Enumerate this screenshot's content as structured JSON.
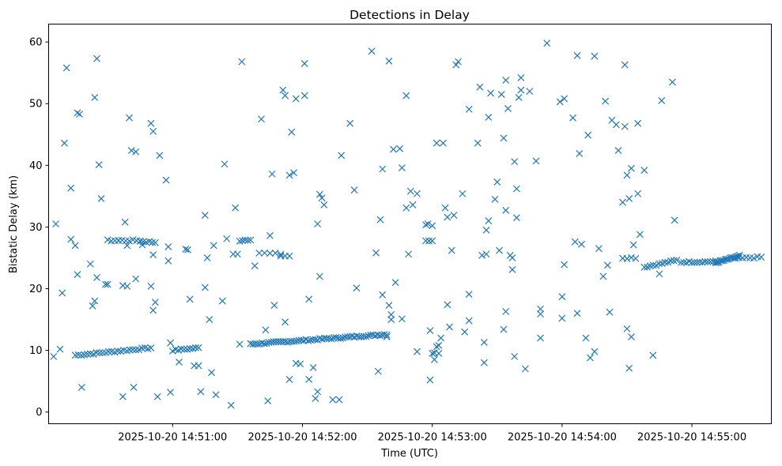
{
  "chart_data": {
    "type": "scatter",
    "title": "Detections in Delay",
    "xlabel": "Time (UTC)",
    "ylabel": "Bistatic Delay (km)",
    "marker": "x",
    "color": "#1f77b4",
    "xlim_seconds": [
      -57.3,
      276.7
    ],
    "ylim": [
      -1.9,
      62.9
    ],
    "x_ticks": [
      {
        "t": 0,
        "label": "2025-10-20 14:51:00"
      },
      {
        "t": 60,
        "label": "2025-10-20 14:52:00"
      },
      {
        "t": 120,
        "label": "2025-10-20 14:53:00"
      },
      {
        "t": 180,
        "label": "2025-10-20 14:54:00"
      },
      {
        "t": 240,
        "label": "2025-10-20 14:55:00"
      }
    ],
    "y_ticks": [
      {
        "v": 0,
        "label": "0"
      },
      {
        "v": 10,
        "label": "10"
      },
      {
        "v": 20,
        "label": "20"
      },
      {
        "v": 30,
        "label": "30"
      },
      {
        "v": 40,
        "label": "40"
      },
      {
        "v": 50,
        "label": "50"
      },
      {
        "v": 60,
        "label": "60"
      }
    ],
    "x_unit_note": "x values are seconds relative to 2025-10-20 14:51:00 UTC",
    "clusters": [
      {
        "t_start": -45,
        "t_end": -10,
        "count": 26,
        "y_start": 9.2,
        "y_end": 10.4
      },
      {
        "t_start": -30,
        "t_end": -15,
        "count": 10,
        "y_start": 27.8,
        "y_end": 27.8
      },
      {
        "t_start": -15,
        "t_end": -8,
        "count": 6,
        "y_start": 27.7,
        "y_end": 27.5
      },
      {
        "t_start": 0,
        "t_end": 12,
        "count": 10,
        "y_start": 10.0,
        "y_end": 10.4
      },
      {
        "t_start": 31,
        "t_end": 36,
        "count": 5,
        "y_start": 27.8,
        "y_end": 28.0
      },
      {
        "t_start": 40,
        "t_end": 50,
        "count": 5,
        "y_start": 25.8,
        "y_end": 25.6
      },
      {
        "t_start": 50,
        "t_end": 54,
        "count": 3,
        "y_start": 25.3,
        "y_end": 25.3
      },
      {
        "t_start": 36,
        "t_end": 99,
        "count": 60,
        "y_start": 11.0,
        "y_end": 12.6
      },
      {
        "t_start": 117,
        "t_end": 120,
        "count": 3,
        "y_start": 27.8,
        "y_end": 27.8
      },
      {
        "t_start": 117,
        "t_end": 120,
        "count": 2,
        "y_start": 30.3,
        "y_end": 30.3
      },
      {
        "t_start": 208,
        "t_end": 214,
        "count": 4,
        "y_start": 25.0,
        "y_end": 25.0
      },
      {
        "t_start": 218,
        "t_end": 233,
        "count": 12,
        "y_start": 23.5,
        "y_end": 24.6
      },
      {
        "t_start": 235,
        "t_end": 251,
        "count": 14,
        "y_start": 24.3,
        "y_end": 24.4
      },
      {
        "t_start": 251,
        "t_end": 262,
        "count": 16,
        "y_start": 24.2,
        "y_end": 25.3
      },
      {
        "t_start": 260,
        "t_end": 272,
        "count": 8,
        "y_start": 24.9,
        "y_end": 25.1
      }
    ],
    "points": [
      [
        -55,
        9.0
      ],
      [
        -54,
        30.5
      ],
      [
        -52,
        10.2
      ],
      [
        -51,
        19.3
      ],
      [
        -50,
        43.6
      ],
      [
        -49,
        55.8
      ],
      [
        -47,
        28.0
      ],
      [
        -47,
        36.3
      ],
      [
        -45,
        27.0
      ],
      [
        -44,
        48.5
      ],
      [
        -44,
        22.3
      ],
      [
        -43,
        48.3
      ],
      [
        -42,
        4.0
      ],
      [
        -38,
        24.0
      ],
      [
        -37,
        17.2
      ],
      [
        -36,
        18.0
      ],
      [
        -36,
        51.0
      ],
      [
        -35,
        57.3
      ],
      [
        -35,
        21.8
      ],
      [
        -34,
        40.1
      ],
      [
        -33,
        34.6
      ],
      [
        -31,
        20.7
      ],
      [
        -30,
        20.7
      ],
      [
        -25,
        27.8
      ],
      [
        -23,
        2.5
      ],
      [
        -23,
        20.5
      ],
      [
        -22,
        30.8
      ],
      [
        -21,
        27.0
      ],
      [
        -21,
        20.4
      ],
      [
        -20,
        47.7
      ],
      [
        -19,
        42.4
      ],
      [
        -18,
        4.0
      ],
      [
        -17,
        42.2
      ],
      [
        -17,
        21.6
      ],
      [
        -14,
        27.1
      ],
      [
        -10,
        46.8
      ],
      [
        -10,
        20.4
      ],
      [
        -9,
        25.5
      ],
      [
        -9,
        45.5
      ],
      [
        -9,
        16.5
      ],
      [
        -8,
        17.8
      ],
      [
        -7,
        2.5
      ],
      [
        -6,
        41.6
      ],
      [
        -3,
        37.6
      ],
      [
        -2,
        26.8
      ],
      [
        -2,
        24.5
      ],
      [
        -1,
        3.2
      ],
      [
        -1,
        11.2
      ],
      [
        3,
        8.1
      ],
      [
        6,
        26.4
      ],
      [
        7,
        26.3
      ],
      [
        8,
        18.3
      ],
      [
        10,
        7.5
      ],
      [
        12,
        7.5
      ],
      [
        13,
        3.3
      ],
      [
        15,
        31.9
      ],
      [
        15,
        20.2
      ],
      [
        16,
        25.0
      ],
      [
        17,
        15.0
      ],
      [
        18,
        6.4
      ],
      [
        19,
        27.0
      ],
      [
        20,
        2.8
      ],
      [
        23,
        18.0
      ],
      [
        24,
        40.2
      ],
      [
        25,
        28.1
      ],
      [
        27,
        1.1
      ],
      [
        28,
        25.6
      ],
      [
        29,
        33.1
      ],
      [
        30,
        25.6
      ],
      [
        31,
        11.0
      ],
      [
        32,
        56.8
      ],
      [
        38,
        23.7
      ],
      [
        41,
        47.5
      ],
      [
        43,
        13.3
      ],
      [
        44,
        1.8
      ],
      [
        45,
        28.6
      ],
      [
        46,
        38.6
      ],
      [
        47,
        17.3
      ],
      [
        51,
        52.2
      ],
      [
        52,
        51.3
      ],
      [
        52,
        14.6
      ],
      [
        54,
        38.4
      ],
      [
        54,
        5.3
      ],
      [
        55,
        45.4
      ],
      [
        56,
        38.8
      ],
      [
        57,
        7.9
      ],
      [
        57,
        50.8
      ],
      [
        59,
        7.8
      ],
      [
        61,
        51.3
      ],
      [
        61,
        56.5
      ],
      [
        63,
        18.3
      ],
      [
        63,
        5.3
      ],
      [
        65,
        7.2
      ],
      [
        66,
        2.2
      ],
      [
        67,
        3.3
      ],
      [
        67,
        30.5
      ],
      [
        68,
        22.0
      ],
      [
        68,
        35.3
      ],
      [
        69,
        34.7
      ],
      [
        70,
        33.6
      ],
      [
        74,
        2.0
      ],
      [
        77,
        2.0
      ],
      [
        78,
        41.6
      ],
      [
        82,
        46.8
      ],
      [
        84,
        36.0
      ],
      [
        85,
        20.1
      ],
      [
        92,
        58.5
      ],
      [
        94,
        25.8
      ],
      [
        95,
        6.6
      ],
      [
        96,
        31.2
      ],
      [
        97,
        39.4
      ],
      [
        97,
        19.0
      ],
      [
        99,
        12.2
      ],
      [
        100,
        17.3
      ],
      [
        100,
        56.9
      ],
      [
        101,
        15.0
      ],
      [
        101,
        15.8
      ],
      [
        102,
        42.6
      ],
      [
        103,
        21.0
      ],
      [
        105,
        42.7
      ],
      [
        106,
        39.6
      ],
      [
        106,
        15.1
      ],
      [
        108,
        33.1
      ],
      [
        108,
        51.3
      ],
      [
        109,
        25.6
      ],
      [
        110,
        35.8
      ],
      [
        111,
        33.6
      ],
      [
        113,
        35.4
      ],
      [
        113,
        9.8
      ],
      [
        118,
        30.5
      ],
      [
        119,
        5.2
      ],
      [
        119,
        13.2
      ],
      [
        120,
        9.5
      ],
      [
        121,
        8.5
      ],
      [
        121,
        9.6
      ],
      [
        122,
        43.6
      ],
      [
        122,
        10.6
      ],
      [
        123,
        9.5
      ],
      [
        123,
        10.8
      ],
      [
        124,
        12.0
      ],
      [
        125,
        43.6
      ],
      [
        126,
        33.1
      ],
      [
        127,
        17.4
      ],
      [
        127,
        31.6
      ],
      [
        128,
        13.8
      ],
      [
        129,
        26.2
      ],
      [
        130,
        31.9
      ],
      [
        131,
        56.3
      ],
      [
        132,
        56.8
      ],
      [
        134,
        35.4
      ],
      [
        135,
        13.0
      ],
      [
        137,
        19.1
      ],
      [
        137,
        49.1
      ],
      [
        137,
        14.8
      ],
      [
        141,
        43.6
      ],
      [
        142,
        52.7
      ],
      [
        143,
        25.4
      ],
      [
        144,
        11.3
      ],
      [
        144,
        8.0
      ],
      [
        145,
        25.6
      ],
      [
        145,
        29.5
      ],
      [
        146,
        31.0
      ],
      [
        146,
        47.8
      ],
      [
        147,
        51.7
      ],
      [
        149,
        34.5
      ],
      [
        150,
        37.3
      ],
      [
        151,
        26.2
      ],
      [
        152,
        51.5
      ],
      [
        153,
        44.4
      ],
      [
        153,
        13.4
      ],
      [
        154,
        53.8
      ],
      [
        154,
        16.3
      ],
      [
        154,
        32.7
      ],
      [
        155,
        49.2
      ],
      [
        156,
        25.4
      ],
      [
        157,
        25.0
      ],
      [
        157,
        23.1
      ],
      [
        158,
        40.6
      ],
      [
        158,
        9.0
      ],
      [
        159,
        36.2
      ],
      [
        159,
        31.5
      ],
      [
        160,
        51.0
      ],
      [
        161,
        54.2
      ],
      [
        161,
        52.2
      ],
      [
        163,
        7.0
      ],
      [
        165,
        52.0
      ],
      [
        168,
        40.7
      ],
      [
        170,
        16.7
      ],
      [
        170,
        15.9
      ],
      [
        170,
        12.0
      ],
      [
        173,
        59.8
      ],
      [
        179,
        50.3
      ],
      [
        180,
        18.7
      ],
      [
        180,
        15.2
      ],
      [
        181,
        50.8
      ],
      [
        181,
        23.9
      ],
      [
        185,
        47.7
      ],
      [
        186,
        27.6
      ],
      [
        187,
        16.0
      ],
      [
        187,
        57.8
      ],
      [
        188,
        41.9
      ],
      [
        189,
        27.2
      ],
      [
        191,
        12.0
      ],
      [
        192,
        44.9
      ],
      [
        193,
        8.8
      ],
      [
        195,
        9.8
      ],
      [
        195,
        57.7
      ],
      [
        197,
        26.5
      ],
      [
        199,
        22.0
      ],
      [
        200,
        50.4
      ],
      [
        201,
        23.8
      ],
      [
        202,
        16.2
      ],
      [
        203,
        47.3
      ],
      [
        205,
        46.6
      ],
      [
        206,
        42.4
      ],
      [
        208,
        34.0
      ],
      [
        209,
        46.3
      ],
      [
        209,
        56.3
      ],
      [
        210,
        38.4
      ],
      [
        210,
        13.5
      ],
      [
        211,
        34.6
      ],
      [
        211,
        7.1
      ],
      [
        212,
        39.5
      ],
      [
        212,
        12.2
      ],
      [
        213,
        27.1
      ],
      [
        215,
        35.4
      ],
      [
        215,
        46.8
      ],
      [
        216,
        28.8
      ],
      [
        218,
        39.2
      ],
      [
        222,
        9.2
      ],
      [
        225,
        22.4
      ],
      [
        226,
        50.5
      ],
      [
        231,
        53.5
      ],
      [
        232,
        31.1
      ]
    ]
  }
}
